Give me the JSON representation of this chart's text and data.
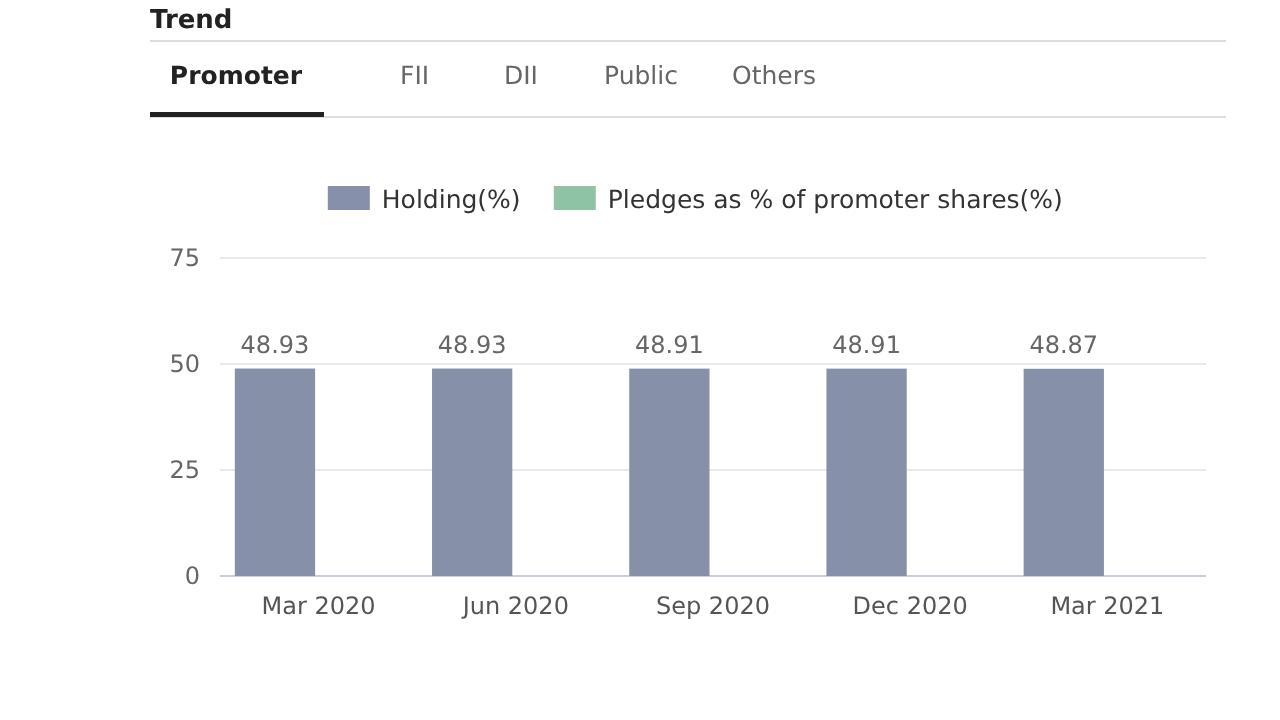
{
  "chart_data": {
    "type": "bar",
    "title": "Trend",
    "annotations": [
      "Promoter",
      "FII",
      "DII",
      "Public",
      "Others"
    ],
    "categories": [
      "Mar 2020",
      "Jun 2020",
      "Sep 2020",
      "Dec 2020",
      "Mar 2021"
    ],
    "series": [
      {
        "name": "Holding(%)",
        "color": "#8690a8",
        "values": [
          48.93,
          48.93,
          48.91,
          48.91,
          48.87
        ],
        "value_labels": [
          "48.93",
          "48.93",
          "48.91",
          "48.91",
          "48.87"
        ]
      },
      {
        "name": "Pledges as % of promoter shares(%)",
        "color": "#8fc3a5",
        "values": [
          0,
          0,
          0,
          0,
          0
        ]
      }
    ],
    "ylim": [
      0,
      75
    ],
    "yticks": [
      0,
      25,
      50,
      75
    ],
    "grid": "y",
    "legend": "top"
  }
}
